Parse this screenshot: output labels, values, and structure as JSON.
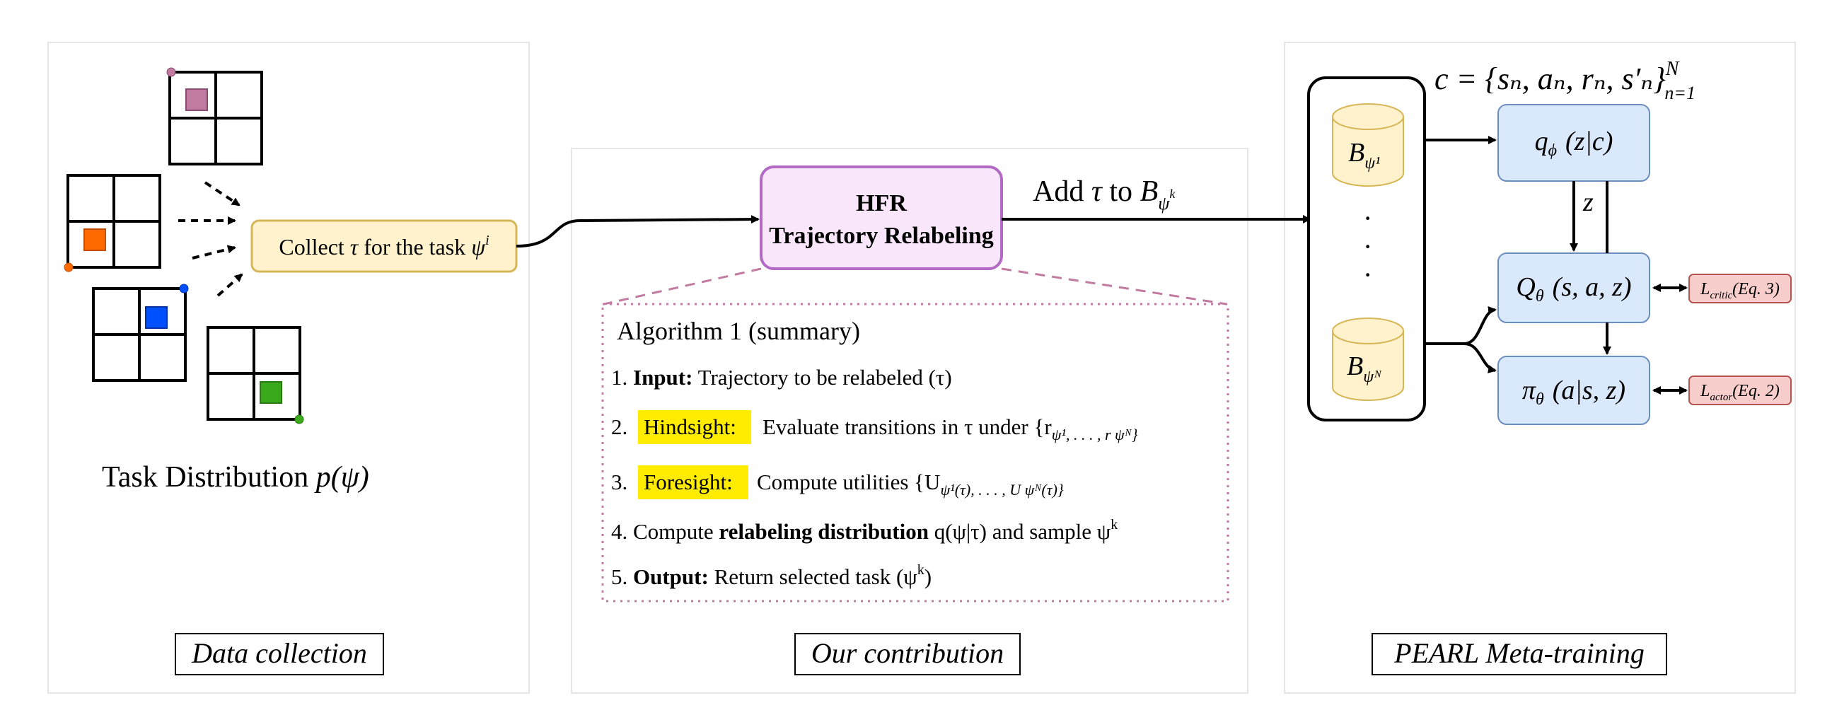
{
  "panels": {
    "left_caption": "Data collection",
    "middle_caption": "Our contribution",
    "right_caption": "PEARL Meta-training"
  },
  "left": {
    "collect_prefix": "Collect",
    "collect_tau": "τ",
    "collect_mid": "for the task",
    "collect_psi": "ψ",
    "collect_sup": "i",
    "task_dist_prefix": "Task Distribution",
    "task_dist_math": "p(ψ)"
  },
  "hfr": {
    "title": "HFR",
    "subtitle": "Trajectory Relabeling",
    "add_prefix": "Add",
    "add_tau": "τ",
    "add_to": "to",
    "add_B": "B",
    "add_sub": "ψ",
    "add_sup": "k"
  },
  "algorithm": {
    "title": "Algorithm 1 (summary)",
    "steps": [
      {
        "num": "1.",
        "bold": "Input:",
        "text": "Trajectory to be relabeled (τ)"
      },
      {
        "num": "2.",
        "highlight": "Hindsight:",
        "text": "Evaluate transitions in τ under {r",
        "math_tail": "ψ¹, . . . , r ψᴺ}"
      },
      {
        "num": "3.",
        "highlight": "Foresight:",
        "text": "Compute utilities {U",
        "math_tail": "ψ¹(τ), . . . , U ψᴺ(τ)}"
      },
      {
        "num": "4.",
        "text_a": "Compute",
        "bold": "relabeling distribution",
        "text_b": "q(ψ|τ) and sample ψ",
        "sup": "k"
      },
      {
        "num": "5.",
        "bold": "Output:",
        "text": "Return selected task (ψ",
        "sup": "k",
        "tail": ")"
      }
    ]
  },
  "pearl": {
    "context_label": "c = {sₙ, aₙ, rₙ, s′ₙ}",
    "context_sup": "N",
    "context_sub": "n=1",
    "buffer_top": "B",
    "buffer_top_sub": "ψ¹",
    "buffer_bottom": "B",
    "buffer_bottom_sub": "ψᴺ",
    "dots": "·",
    "encoder": "q",
    "encoder_sub": "ϕ",
    "encoder_arg": "(z|c)",
    "z_label": "z",
    "critic": "Q",
    "critic_sub": "θ",
    "critic_arg": "(s, a, z)",
    "actor": "π",
    "actor_sub": "θ",
    "actor_arg": "(a|s, z)",
    "loss_critic": "L",
    "loss_critic_sub": "critic",
    "loss_critic_eq": "(Eq. 3)",
    "loss_actor": "L",
    "loss_actor_sub": "actor",
    "loss_actor_eq": "(Eq. 2)"
  },
  "colors": {
    "grid_pink": "#c27ba0",
    "grid_orange": "#ff6a00",
    "grid_blue": "#0050ff",
    "grid_green": "#3aaa1b",
    "collect_fill": "#fff2cc",
    "collect_stroke": "#d6b656",
    "hfr_fill": "#f9e6fb",
    "hfr_stroke": "#b36ac4",
    "net_fill": "#dae8fc",
    "net_stroke": "#6c8ebf",
    "loss_fill": "#f8cecc",
    "loss_stroke": "#b85450",
    "buffer_fill": "#fff2cc",
    "buffer_stroke": "#d6b656",
    "highlight": "#ffec00"
  }
}
